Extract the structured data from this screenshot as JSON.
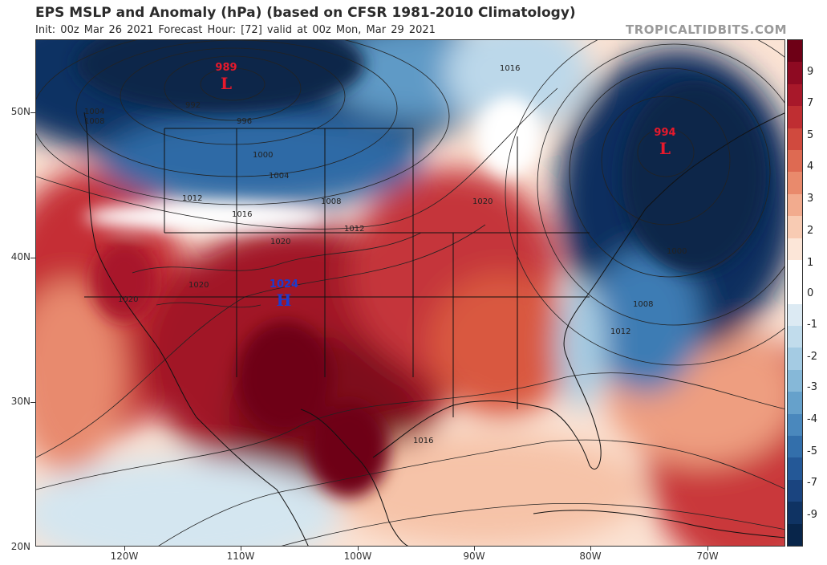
{
  "header": {
    "title": "EPS MSLP and Anomaly (hPa) (based on CFSR 1981-2010 Climatology)",
    "subtitle": "Init: 00z Mar 26 2021   Forecast Hour: [72]   valid at 00z Mon, Mar 29 2021",
    "brand": "TROPICALTIDBITS.COM"
  },
  "axes": {
    "lat_labels": [
      "50N",
      "40N",
      "30N",
      "20N"
    ],
    "lon_labels": [
      "120W",
      "110W",
      "100W",
      "90W",
      "80W",
      "70W"
    ]
  },
  "pressure_centers": [
    {
      "id": "low-west",
      "value": "989",
      "letter": "L",
      "type": "low"
    },
    {
      "id": "low-east",
      "value": "994",
      "letter": "L",
      "type": "low"
    },
    {
      "id": "high-central",
      "value": "1024",
      "letter": "H",
      "type": "high"
    }
  ],
  "isobar_labels": [
    "1016",
    "992",
    "996",
    "1000",
    "1004",
    "1008",
    "1012",
    "1016",
    "1020",
    "1020",
    "1020",
    "1020",
    "1012",
    "1008",
    "1004",
    "1000",
    "1008",
    "1012",
    "1016"
  ],
  "colorbar": {
    "labels": [
      "9",
      "7",
      "5",
      "4",
      "3",
      "2",
      "1",
      "0",
      "-1",
      "-2",
      "-3",
      "-4",
      "-5",
      "-7",
      "-9"
    ],
    "colors": [
      "#6e0016",
      "#8e0a22",
      "#a8182a",
      "#bf2e32",
      "#d04a3e",
      "#de6a52",
      "#e98a6c",
      "#f2ab8e",
      "#f8cbb3",
      "#fce6d8",
      "#ffffff",
      "#ffffff",
      "#dceaf3",
      "#c1dcec",
      "#a4cbe3",
      "#86b8d8",
      "#66a1cb",
      "#4a88bd",
      "#336fab",
      "#245897",
      "#1a447f",
      "#0f3363",
      "#08254a"
    ]
  }
}
